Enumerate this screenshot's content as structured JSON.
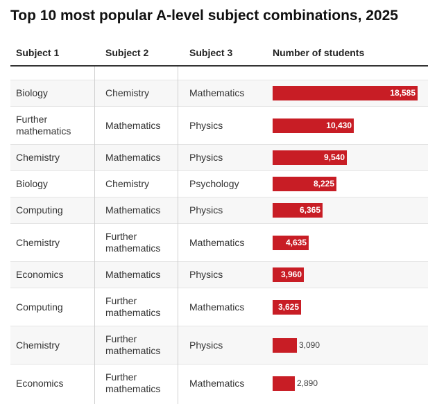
{
  "title": "Top 10 most popular A-level subject combinations, 2025",
  "columns": [
    "Subject 1",
    "Subject 2",
    "Subject 3",
    "Number of students"
  ],
  "chart_data": {
    "type": "table",
    "title": "Top 10 most popular A-level subject combinations, 2025",
    "columns": [
      "Subject 1",
      "Subject 2",
      "Subject 3",
      "Number of students"
    ],
    "bar_color": "#c81d25",
    "max_value": 18585,
    "rows": [
      {
        "s1": "Biology",
        "s2": "Chemistry",
        "s3": "Mathematics",
        "value": 18585,
        "label": "18,585"
      },
      {
        "s1": "Further mathematics",
        "s2": "Mathematics",
        "s3": "Physics",
        "value": 10430,
        "label": "10,430"
      },
      {
        "s1": "Chemistry",
        "s2": "Mathematics",
        "s3": "Physics",
        "value": 9540,
        "label": "9,540"
      },
      {
        "s1": "Biology",
        "s2": "Chemistry",
        "s3": "Psychology",
        "value": 8225,
        "label": "8,225"
      },
      {
        "s1": "Computing",
        "s2": "Mathematics",
        "s3": "Physics",
        "value": 6365,
        "label": "6,365"
      },
      {
        "s1": "Chemistry",
        "s2": "Further mathematics",
        "s3": "Mathematics",
        "value": 4635,
        "label": "4,635"
      },
      {
        "s1": "Economics",
        "s2": "Mathematics",
        "s3": "Physics",
        "value": 3960,
        "label": "3,960"
      },
      {
        "s1": "Computing",
        "s2": "Further mathematics",
        "s3": "Mathematics",
        "value": 3625,
        "label": "3,625"
      },
      {
        "s1": "Chemistry",
        "s2": "Further mathematics",
        "s3": "Physics",
        "value": 3090,
        "label": "3,090"
      },
      {
        "s1": "Economics",
        "s2": "Further mathematics",
        "s3": "Mathematics",
        "value": 2890,
        "label": "2,890"
      }
    ]
  }
}
